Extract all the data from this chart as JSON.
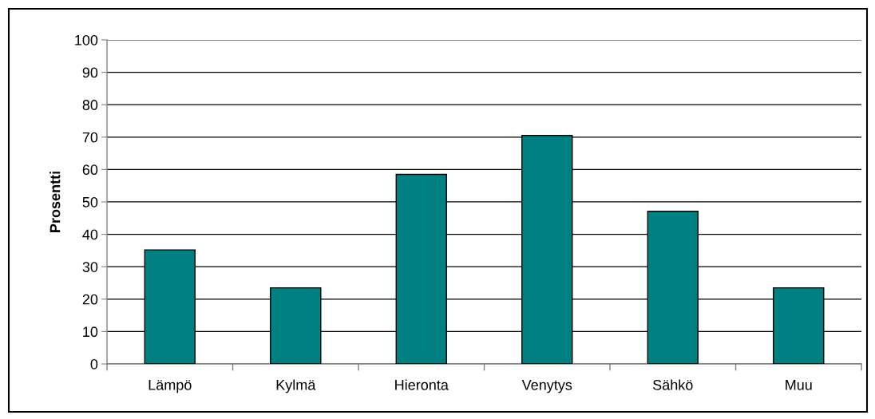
{
  "chart_data": {
    "type": "bar",
    "categories": [
      "Lämpö",
      "Kylmä",
      "Hieronta",
      "Venytys",
      "Sähkö",
      "Muu"
    ],
    "values": [
      35.2,
      23.5,
      58.5,
      70.5,
      47.1,
      23.5
    ],
    "color": "#008080",
    "ylabel": "Prosentti",
    "ylim": [
      0,
      100
    ],
    "yticks": [
      0,
      10,
      20,
      30,
      40,
      50,
      60,
      70,
      80,
      90,
      100
    ],
    "grid": "y"
  }
}
